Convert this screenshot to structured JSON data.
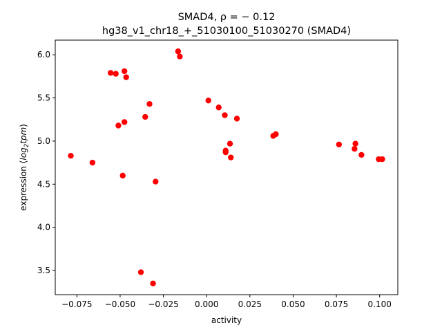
{
  "chart_data": {
    "type": "scatter",
    "title_line1": "SMAD4, ρ = − 0.12",
    "title_line2": "hg38_v1_chr18_+_51030100_51030270 (SMAD4)",
    "xlabel": "activity",
    "ylabel_prefix": "expression (",
    "ylabel_log": "log",
    "ylabel_sub": "2",
    "ylabel_tpm": "tpm",
    "ylabel_suffix": ")",
    "xlim": [
      -0.0875,
      0.1105
    ],
    "ylim": [
      3.22,
      6.17
    ],
    "xticks": [
      -0.075,
      -0.05,
      -0.025,
      0.0,
      0.025,
      0.05,
      0.075,
      0.1
    ],
    "xtick_labels": [
      "−0.075",
      "−0.050",
      "−0.025",
      "0.000",
      "0.025",
      "0.050",
      "0.075",
      "0.100"
    ],
    "yticks": [
      3.5,
      4.0,
      4.5,
      5.0,
      5.5,
      6.0
    ],
    "ytick_labels": [
      "3.5",
      "4.0",
      "4.5",
      "5.0",
      "5.5",
      "6.0"
    ],
    "marker_color": "#ff0000",
    "points": [
      {
        "x": -0.0785,
        "y": 4.83
      },
      {
        "x": -0.066,
        "y": 4.75
      },
      {
        "x": -0.0555,
        "y": 5.79
      },
      {
        "x": -0.0525,
        "y": 5.78
      },
      {
        "x": -0.0475,
        "y": 5.81
      },
      {
        "x": -0.0465,
        "y": 5.74
      },
      {
        "x": -0.051,
        "y": 5.18
      },
      {
        "x": -0.0475,
        "y": 5.22
      },
      {
        "x": -0.0485,
        "y": 4.6
      },
      {
        "x": -0.033,
        "y": 5.43
      },
      {
        "x": -0.0355,
        "y": 5.28
      },
      {
        "x": -0.0295,
        "y": 4.53
      },
      {
        "x": -0.038,
        "y": 3.48
      },
      {
        "x": -0.031,
        "y": 3.35
      },
      {
        "x": -0.0165,
        "y": 6.04
      },
      {
        "x": -0.0155,
        "y": 5.98
      },
      {
        "x": 0.001,
        "y": 5.47
      },
      {
        "x": 0.007,
        "y": 5.39
      },
      {
        "x": 0.0105,
        "y": 5.3
      },
      {
        "x": 0.0175,
        "y": 5.26
      },
      {
        "x": 0.0135,
        "y": 4.97
      },
      {
        "x": 0.011,
        "y": 4.89
      },
      {
        "x": 0.011,
        "y": 4.87
      },
      {
        "x": 0.014,
        "y": 4.81
      },
      {
        "x": 0.0385,
        "y": 5.06
      },
      {
        "x": 0.04,
        "y": 5.08
      },
      {
        "x": 0.0765,
        "y": 4.96
      },
      {
        "x": 0.086,
        "y": 4.97
      },
      {
        "x": 0.0855,
        "y": 4.91
      },
      {
        "x": 0.0895,
        "y": 4.84
      },
      {
        "x": 0.0995,
        "y": 4.79
      },
      {
        "x": 0.1015,
        "y": 4.79
      }
    ]
  }
}
